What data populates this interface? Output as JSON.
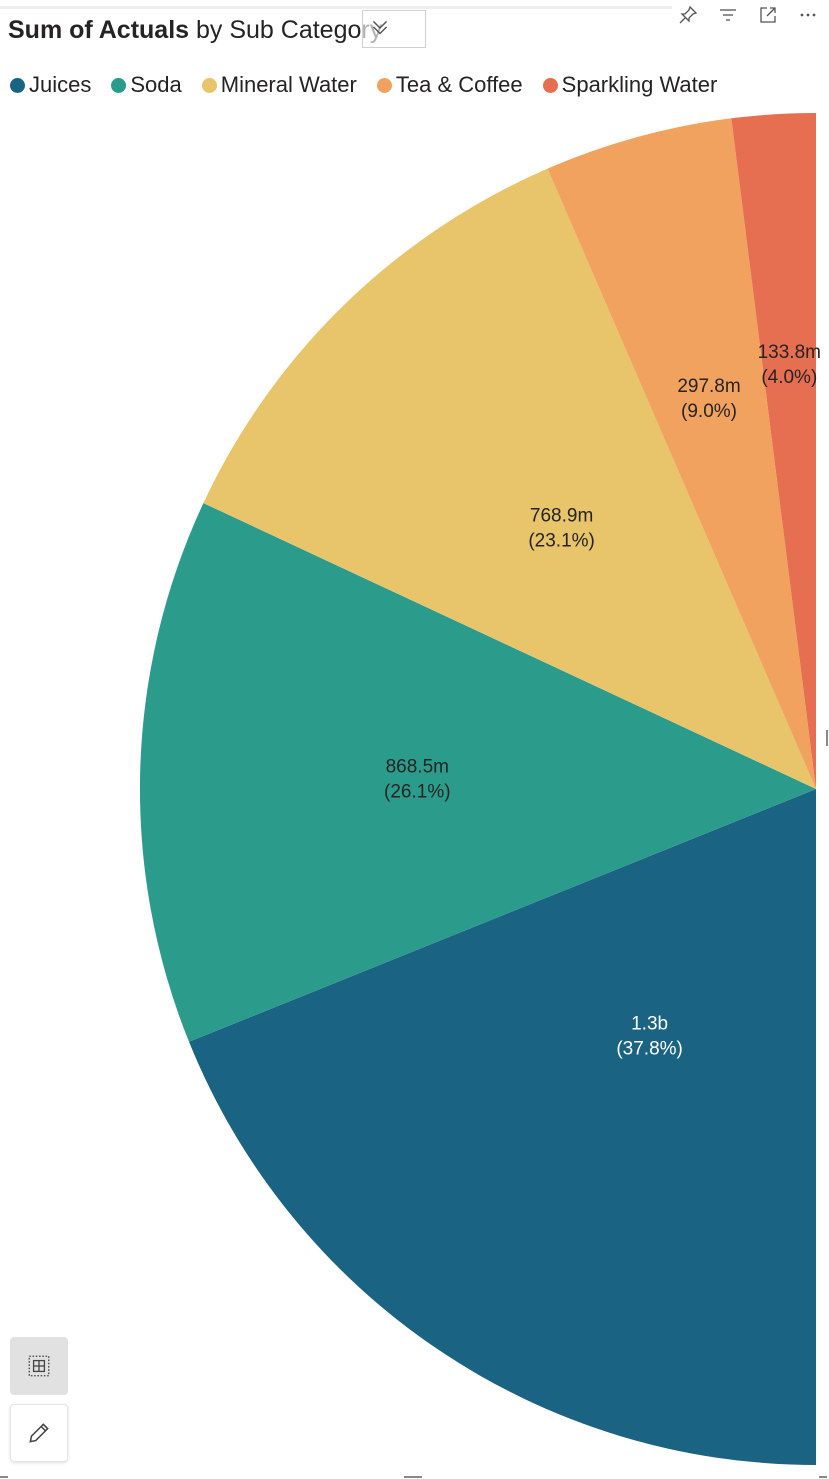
{
  "header": {
    "title_bold": "Sum of Actuals",
    "title_rest": " by Sub Category",
    "icons": [
      "pin-icon",
      "filter-icon",
      "focus-mode-icon",
      "more-options-icon"
    ],
    "drill_icon": "drill-down-chevrons-icon"
  },
  "legend": {
    "items": [
      {
        "label": "Juices",
        "color": "#1a6382"
      },
      {
        "label": "Soda",
        "color": "#2b9c8c"
      },
      {
        "label": "Mineral Water",
        "color": "#e8c46b"
      },
      {
        "label": "Tea & Coffee",
        "color": "#f2a25f"
      },
      {
        "label": "Sparkling Water",
        "color": "#e66f51"
      }
    ]
  },
  "chart_data": {
    "type": "pie",
    "title": "Sum of Actuals by Sub Category",
    "slices": [
      {
        "name": "Juices",
        "value_label": "1.3b",
        "percent": 37.8,
        "percent_label": "(37.8%)",
        "color": "#1a6382",
        "label_color": "#ffffff"
      },
      {
        "name": "Soda",
        "value_label": "868.5m",
        "percent": 26.1,
        "percent_label": "(26.1%)",
        "color": "#2b9c8c",
        "label_color": "#252423"
      },
      {
        "name": "Mineral Water",
        "value_label": "768.9m",
        "percent": 23.1,
        "percent_label": "(23.1%)",
        "color": "#e8c46b",
        "label_color": "#252423"
      },
      {
        "name": "Tea & Coffee",
        "value_label": "297.8m",
        "percent": 9.0,
        "percent_label": "(9.0%)",
        "color": "#f2a25f",
        "label_color": "#252423"
      },
      {
        "name": "Sparkling Water",
        "value_label": "133.8m",
        "percent": 4.0,
        "percent_label": "(4.0%)",
        "color": "#e66f51",
        "label_color": "#252423"
      }
    ],
    "start_direction": "bottom",
    "direction": "clockwise",
    "visible_portion": "left half"
  },
  "tools": {
    "table_icon": "table-view-icon",
    "edit_icon": "pencil-edit-icon"
  }
}
